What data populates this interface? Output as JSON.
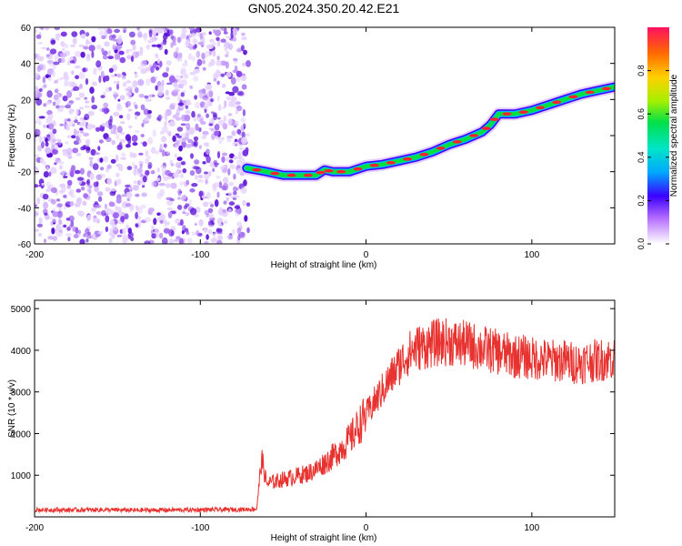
{
  "title": "GN05.2024.350.20.42.E21",
  "chart_data": [
    {
      "type": "heatmap",
      "xlabel": "Height of straight line (km)",
      "ylabel": "Frequency (Hz)",
      "xlim": [
        -200,
        150
      ],
      "ylim": [
        -60,
        60
      ],
      "x_ticks": [
        -200,
        -100,
        0,
        100
      ],
      "y_ticks": [
        -60,
        -40,
        -20,
        0,
        20,
        40,
        60
      ],
      "noise_region_x": [
        -200,
        -71
      ],
      "signal_track": [
        {
          "x": -72,
          "y": -18
        },
        {
          "x": -60,
          "y": -20
        },
        {
          "x": -50,
          "y": -22
        },
        {
          "x": -30,
          "y": -22
        },
        {
          "x": -25,
          "y": -19
        },
        {
          "x": -20,
          "y": -20
        },
        {
          "x": -10,
          "y": -20
        },
        {
          "x": 0,
          "y": -17
        },
        {
          "x": 10,
          "y": -16
        },
        {
          "x": 20,
          "y": -14
        },
        {
          "x": 30,
          "y": -12
        },
        {
          "x": 40,
          "y": -9
        },
        {
          "x": 50,
          "y": -5
        },
        {
          "x": 60,
          "y": -2
        },
        {
          "x": 70,
          "y": 2
        },
        {
          "x": 75,
          "y": 6
        },
        {
          "x": 80,
          "y": 12
        },
        {
          "x": 90,
          "y": 12
        },
        {
          "x": 100,
          "y": 14
        },
        {
          "x": 110,
          "y": 17
        },
        {
          "x": 120,
          "y": 20
        },
        {
          "x": 130,
          "y": 23
        },
        {
          "x": 140,
          "y": 25
        },
        {
          "x": 150,
          "y": 27
        }
      ],
      "colorbar": {
        "label": "Normalized spectral amplitude",
        "range": [
          0,
          1
        ],
        "ticks": [
          0.0,
          0.2,
          0.4,
          0.6,
          0.8
        ]
      }
    },
    {
      "type": "line",
      "xlabel": "Height of straight line (km)",
      "ylabel": "SNR (10 * v/v)",
      "xlim": [
        -200,
        150
      ],
      "ylim": [
        0,
        5200
      ],
      "x_ticks": [
        -200,
        -100,
        0,
        100
      ],
      "y_ticks": [
        1000,
        2000,
        3000,
        4000,
        5000
      ],
      "color": "#e8322f",
      "series": [
        {
          "x": [
            -200,
            -180,
            -160,
            -140,
            -120,
            -100,
            -80,
            -66,
            -63,
            -60,
            -55,
            -50,
            -45,
            -40,
            -35,
            -30,
            -25,
            -20,
            -15,
            -10,
            -5,
            0,
            5,
            10,
            15,
            20,
            25,
            30,
            35,
            40,
            45,
            50,
            55,
            60,
            65,
            70,
            75,
            80,
            85,
            90,
            95,
            100,
            105,
            110,
            115,
            120,
            125,
            130,
            135,
            140,
            145,
            150
          ],
          "values": [
            170,
            165,
            170,
            160,
            165,
            170,
            175,
            190,
            1400,
            800,
            850,
            900,
            950,
            1000,
            1050,
            1150,
            1300,
            1450,
            1650,
            1850,
            2150,
            2450,
            2750,
            3050,
            3350,
            3650,
            3900,
            4050,
            4100,
            4150,
            4200,
            4200,
            4150,
            4150,
            4100,
            4050,
            4000,
            3950,
            3900,
            3850,
            3850,
            3800,
            3800,
            3750,
            3750,
            3750,
            3700,
            3700,
            3750,
            3750,
            3800,
            3800
          ]
        }
      ]
    }
  ]
}
